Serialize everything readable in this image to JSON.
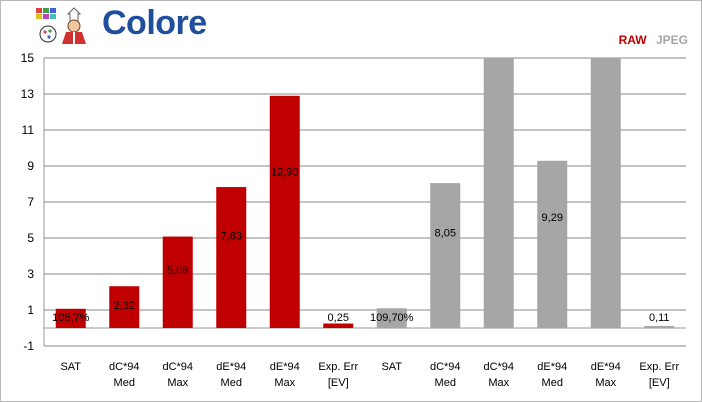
{
  "header": {
    "title": "Colore"
  },
  "colors": {
    "raw": "#c00000",
    "jpeg": "#a6a6a6",
    "title": "#1f4e9c",
    "grid": "#888888"
  },
  "chart_data": {
    "type": "bar",
    "title": "Colore",
    "xlabel": "",
    "ylabel": "",
    "ylim": [
      -1,
      15
    ],
    "yticks": [
      "15",
      "13",
      "11",
      "9",
      "7",
      "5",
      "3",
      "1",
      "-1"
    ],
    "grid": true,
    "legend_position": "top-right",
    "legend": [
      {
        "name": "RAW",
        "color": "#c00000"
      },
      {
        "name": "JPEG",
        "color": "#a6a6a6"
      }
    ],
    "categories": [
      [
        "SAT",
        ""
      ],
      [
        "dC*94",
        "Med"
      ],
      [
        "dC*94",
        "Max"
      ],
      [
        "dE*94",
        "Med"
      ],
      [
        "dE*94",
        "Max"
      ],
      [
        "Exp. Err",
        "[EV]"
      ],
      [
        "SAT",
        ""
      ],
      [
        "dC*94",
        "Med"
      ],
      [
        "dC*94",
        "Max"
      ],
      [
        "dE*94",
        "Med"
      ],
      [
        "dE*94",
        "Max"
      ],
      [
        "Exp. Err",
        "[EV]"
      ]
    ],
    "series": [
      {
        "name": "RAW",
        "color": "#c00000",
        "values": [
          1.067,
          2.32,
          5.08,
          7.83,
          12.9,
          0.25,
          null,
          null,
          null,
          null,
          null,
          null
        ],
        "labels": [
          "106,7%",
          "2,32",
          "5,08",
          "7,83",
          "12,90",
          "0,25",
          "",
          "",
          "",
          "",
          "",
          ""
        ]
      },
      {
        "name": "JPEG",
        "color": "#a6a6a6",
        "values": [
          null,
          null,
          null,
          null,
          null,
          null,
          1.097,
          8.05,
          15,
          9.29,
          15,
          0.11
        ],
        "labels": [
          "",
          "",
          "",
          "",
          "",
          "",
          "109,70%",
          "8,05",
          "",
          "9,29",
          "",
          "0,11"
        ]
      }
    ]
  }
}
